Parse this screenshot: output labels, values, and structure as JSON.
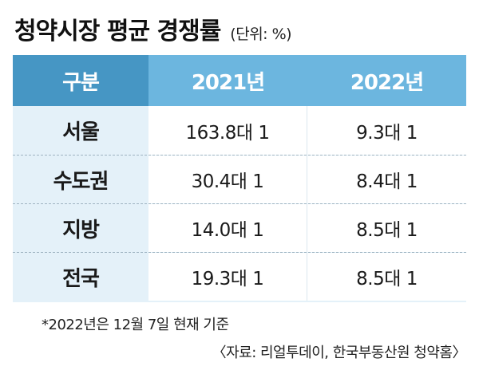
{
  "title": "청약시장 평균 경쟁률",
  "unit": "(단위: %)",
  "table": {
    "headers": [
      "구분",
      "2021년",
      "2022년"
    ],
    "rows": [
      {
        "region": "서울",
        "y2021": "163.8대 1",
        "y2022": "9.3대 1"
      },
      {
        "region": "수도권",
        "y2021": "30.4대 1",
        "y2022": "8.4대 1"
      },
      {
        "region": "지방",
        "y2021": "14.0대 1",
        "y2022": "8.5대 1"
      },
      {
        "region": "전국",
        "y2021": "19.3대 1",
        "y2022": "8.5대 1"
      }
    ]
  },
  "footnote": "*2022년은 12월 7일 현재 기준",
  "source": "〈자료: 리얼투데이, 한국부동산원 청약홈〉",
  "colors": {
    "header_first": "#4696c4",
    "header_other": "#6cb6df",
    "first_column_bg": "#e4f1f9",
    "cell_bg": "#ffffff"
  }
}
